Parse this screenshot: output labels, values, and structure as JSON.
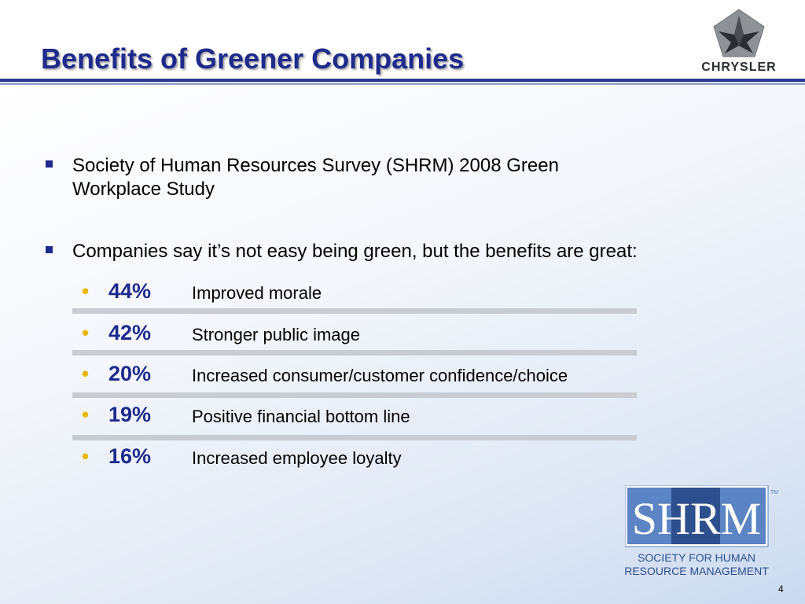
{
  "slide": {
    "title": "Benefits of Greener Companies",
    "bullets": [
      {
        "line1": "Society of Human Resources Survey (SHRM) 2008 Green",
        "line2": "Workplace Study"
      },
      {
        "line1": "Companies say it’s not easy being green, but the benefits are great:"
      }
    ],
    "items": [
      {
        "pct": "44%",
        "label": "Improved morale"
      },
      {
        "pct": "42%",
        "label": "Stronger public image"
      },
      {
        "pct": "20%",
        "label": "Increased consumer/customer confidence/choice"
      },
      {
        "pct": "19%",
        "label": "Positive financial bottom line"
      },
      {
        "pct": "16%",
        "label": "Increased employee loyalty"
      }
    ],
    "page_number": "4"
  },
  "logos": {
    "chrysler": {
      "icon": "chrysler-pentastar-logo",
      "wordmark": "CHRYSLER"
    },
    "shrm": {
      "icon": "shrm-logo",
      "letters": "SHRM",
      "tm": "TM",
      "line1": "SOCIETY FOR HUMAN",
      "line2": "RESOURCE MANAGEMENT"
    }
  },
  "colors": {
    "title": "#1f2a8c",
    "percent": "#1f2a8c",
    "bullet_dot": "#e6b800",
    "rule": "#2a3590"
  }
}
